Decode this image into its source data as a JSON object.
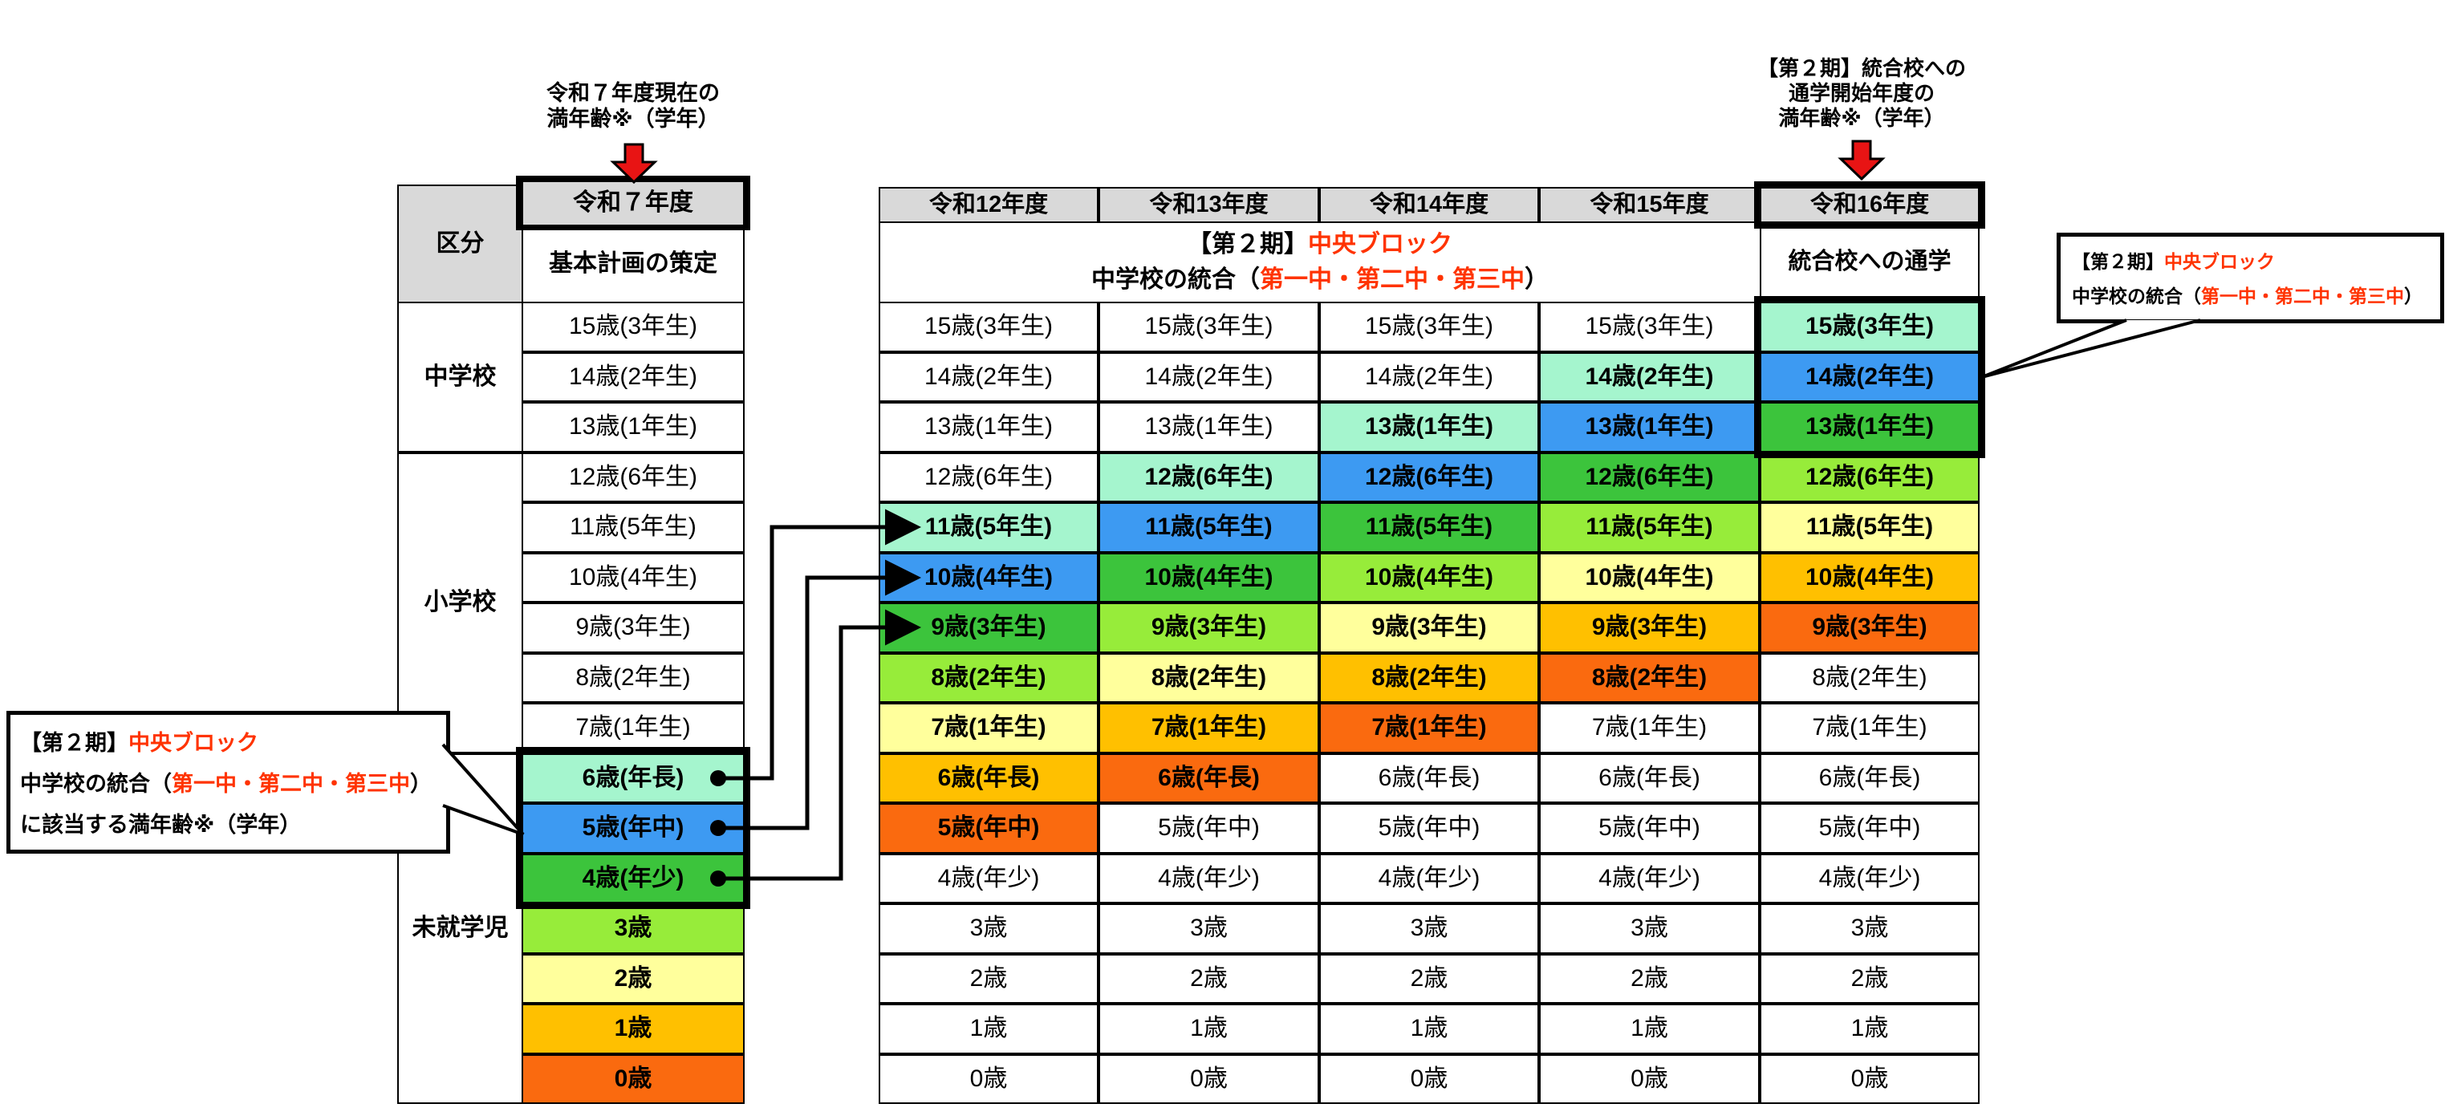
{
  "annotations": {
    "top_left": {
      "line1": "令和７年度現在の",
      "line2": "満年齢※（学年）"
    },
    "top_right": {
      "line1": "【第２期】統合校への",
      "line2": "通学開始年度の",
      "line3": "満年齢※（学年）"
    }
  },
  "left_table": {
    "corner_label": "区分",
    "year_header": "令和７年度",
    "plan_label": "基本計画の策定",
    "groups": [
      {
        "label": "中学校",
        "span": 3
      },
      {
        "label": "小学校",
        "span": 6
      },
      {
        "label": "未就学児",
        "span": 7
      }
    ],
    "row_colors": [
      "white",
      "white",
      "white",
      "white",
      "white",
      "white",
      "white",
      "white",
      "white",
      "mint",
      "blue",
      "green",
      "lime",
      "paleyellow",
      "amber",
      "orange"
    ]
  },
  "rows": {
    "labels": [
      "15歳(3年生)",
      "14歳(2年生)",
      "13歳(1年生)",
      "12歳(6年生)",
      "11歳(5年生)",
      "10歳(4年生)",
      "9歳(3年生)",
      "8歳(2年生)",
      "7歳(1年生)",
      "6歳(年長)",
      "5歳(年中)",
      "4歳(年少)",
      "3歳",
      "2歳",
      "1歳",
      "0歳"
    ]
  },
  "right_table": {
    "year_headers": [
      "令和12年度",
      "令和13年度",
      "令和14年度",
      "令和15年度",
      "令和16年度"
    ],
    "banner": {
      "black1": "【第２期】",
      "red1": "中央ブロック",
      "black2": "中学校の統合（",
      "red2": "第一中・第二中・第三中",
      "black3": "）"
    },
    "final_column_label": "統合校への通学",
    "column_colors": [
      [
        "white",
        "white",
        "white",
        "white",
        "mint",
        "blue",
        "green",
        "lime",
        "paleyellow",
        "amber",
        "orange",
        "white",
        "white",
        "white",
        "white",
        "white"
      ],
      [
        "white",
        "white",
        "white",
        "mint",
        "blue",
        "green",
        "lime",
        "paleyellow",
        "amber",
        "orange",
        "white",
        "white",
        "white",
        "white",
        "white",
        "white"
      ],
      [
        "white",
        "white",
        "mint",
        "blue",
        "green",
        "lime",
        "paleyellow",
        "amber",
        "orange",
        "white",
        "white",
        "white",
        "white",
        "white",
        "white",
        "white"
      ],
      [
        "white",
        "mint",
        "blue",
        "green",
        "lime",
        "paleyellow",
        "amber",
        "orange",
        "white",
        "white",
        "white",
        "white",
        "white",
        "white",
        "white",
        "white"
      ],
      [
        "mint",
        "blue",
        "green",
        "lime",
        "paleyellow",
        "amber",
        "orange",
        "white",
        "white",
        "white",
        "white",
        "white",
        "white",
        "white",
        "white",
        "white"
      ]
    ]
  },
  "callouts": {
    "left": {
      "black1": "【第２期】",
      "red1": "中央ブロック",
      "black2": "中学校の統合（",
      "red2": "第一中・第二中・第三中",
      "black3": "）",
      "line3": "に該当する満年齢※（学年）"
    },
    "right": {
      "black1": "【第２期】",
      "red1": "中央ブロック",
      "black2": "中学校の統合（",
      "red2": "第一中・第二中・第三中",
      "black3": "）"
    }
  },
  "colors": {
    "white": "#FFFFFF",
    "mint": "#A5F5CE",
    "blue": "#3D9AF2",
    "green": "#3CC43C",
    "lime": "#97EC3A",
    "paleyellow": "#FFFF9C",
    "amber": "#FFC000",
    "orange": "#FA6A0F",
    "header_gray": "#D9D9D9",
    "red_text": "#FF3300",
    "arrow_red": "#E81414",
    "line_black": "#000000"
  }
}
